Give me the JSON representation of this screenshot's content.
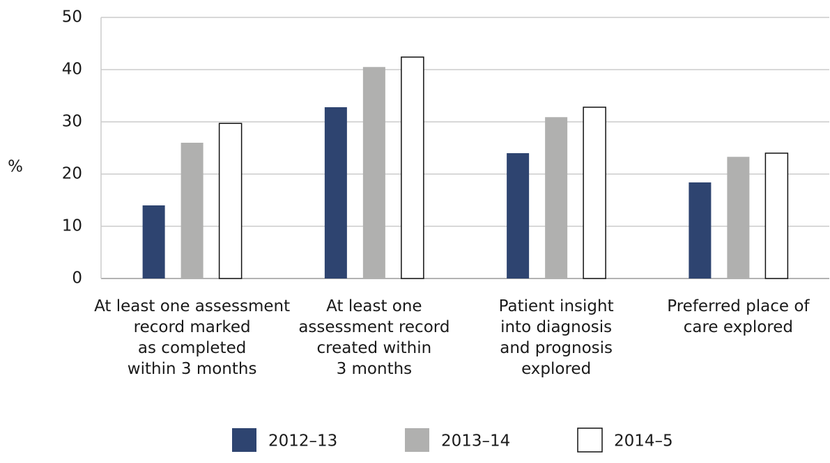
{
  "chart_data": {
    "type": "bar",
    "y_label": "%",
    "categories": [
      "At least one assessment\nrecord marked\nas completed\nwithin 3 months",
      "At least one\nassessment record\ncreated within\n3 months",
      "Patient insight\ninto diagnosis\nand prognosis\nexplored",
      "Preferred place of\ncare explored"
    ],
    "series": [
      {
        "name": "2012–13",
        "color": "#2e4470",
        "values": [
          14,
          32.8,
          24,
          18.4
        ]
      },
      {
        "name": "2013–14",
        "color": "#b0b0af",
        "values": [
          26,
          40.5,
          30.9,
          23.3
        ]
      },
      {
        "name": "2014–5",
        "color": "#ffffff",
        "values": [
          29.7,
          42.4,
          32.8,
          24
        ]
      }
    ],
    "ylim": [
      0,
      50
    ],
    "yticks": [
      0,
      10,
      20,
      30,
      40,
      50
    ],
    "grid": true,
    "legend": "bottom"
  }
}
